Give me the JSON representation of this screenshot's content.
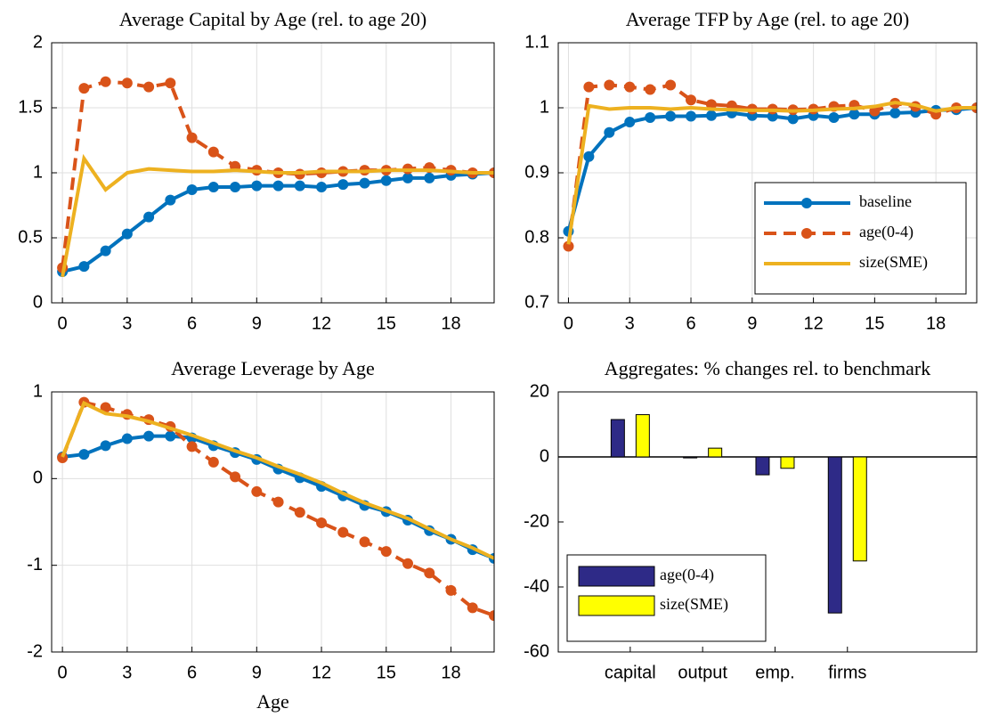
{
  "chart_data": [
    {
      "type": "line",
      "title": "Average Capital by Age (rel. to age 20)",
      "x": [
        0,
        1,
        2,
        3,
        4,
        5,
        6,
        7,
        8,
        9,
        10,
        11,
        12,
        13,
        14,
        15,
        16,
        17,
        18,
        19,
        20
      ],
      "xlim": [
        -0.5,
        20
      ],
      "xticks": [
        0,
        3,
        6,
        9,
        12,
        15,
        18
      ],
      "ylim": [
        0,
        2
      ],
      "yticks": [
        0,
        0.5,
        1,
        1.5,
        2
      ],
      "grid": true,
      "series": [
        {
          "color": "#0072bd",
          "linestyle": "-",
          "marker": "o",
          "values": [
            0.24,
            0.28,
            0.4,
            0.53,
            0.66,
            0.79,
            0.87,
            0.89,
            0.89,
            0.9,
            0.9,
            0.9,
            0.89,
            0.91,
            0.92,
            0.94,
            0.96,
            0.96,
            0.98,
            0.99,
            1.0
          ]
        },
        {
          "color": "#d95319",
          "linestyle": "--",
          "marker": "o",
          "values": [
            0.27,
            1.65,
            1.7,
            1.69,
            1.66,
            1.69,
            1.27,
            1.16,
            1.05,
            1.02,
            1.0,
            0.99,
            1.0,
            1.01,
            1.02,
            1.02,
            1.03,
            1.04,
            1.02,
            1.0,
            1.0
          ]
        },
        {
          "color": "#edb120",
          "linestyle": "-",
          "marker": "none",
          "values": [
            0.2,
            1.11,
            0.87,
            1.0,
            1.03,
            1.02,
            1.01,
            1.01,
            1.02,
            1.01,
            1.0,
            1.0,
            1.01,
            1.01,
            1.01,
            1.02,
            1.02,
            1.02,
            1.01,
            1.0,
            1.0
          ]
        }
      ]
    },
    {
      "type": "line",
      "title": "Average TFP by Age (rel. to age 20)",
      "x": [
        0,
        1,
        2,
        3,
        4,
        5,
        6,
        7,
        8,
        9,
        10,
        11,
        12,
        13,
        14,
        15,
        16,
        17,
        18,
        19,
        20
      ],
      "xlim": [
        -0.5,
        20
      ],
      "xticks": [
        0,
        3,
        6,
        9,
        12,
        15,
        18
      ],
      "ylim": [
        0.7,
        1.1
      ],
      "yticks": [
        0.7,
        0.8,
        0.9,
        1,
        1.1
      ],
      "grid": true,
      "legend": "lower right",
      "series": [
        {
          "name": "baseline",
          "color": "#0072bd",
          "linestyle": "-",
          "marker": "o",
          "values": [
            0.81,
            0.925,
            0.962,
            0.978,
            0.985,
            0.987,
            0.987,
            0.988,
            0.992,
            0.988,
            0.987,
            0.983,
            0.988,
            0.985,
            0.99,
            0.99,
            0.992,
            0.993,
            0.996,
            0.997,
            1.0
          ]
        },
        {
          "name": "age(0-4)",
          "color": "#d95319",
          "linestyle": "--",
          "marker": "o",
          "values": [
            0.787,
            1.032,
            1.035,
            1.032,
            1.028,
            1.035,
            1.012,
            1.005,
            1.003,
            0.998,
            0.998,
            0.997,
            0.998,
            1.002,
            1.004,
            0.995,
            1.007,
            1.002,
            0.99,
            1.0,
            1.0
          ]
        },
        {
          "name": "size(SME)",
          "color": "#edb120",
          "linestyle": "-",
          "marker": "none",
          "values": [
            0.79,
            1.003,
            0.998,
            1.0,
            1.0,
            0.998,
            1.0,
            0.998,
            0.997,
            0.996,
            0.996,
            0.995,
            0.996,
            0.998,
            0.999,
            1.002,
            1.008,
            1.004,
            0.995,
            1.0,
            1.0
          ]
        }
      ]
    },
    {
      "type": "line",
      "title": "Average Leverage by Age",
      "x_label": "Age",
      "x": [
        0,
        1,
        2,
        3,
        4,
        5,
        6,
        7,
        8,
        9,
        10,
        11,
        12,
        13,
        14,
        15,
        16,
        17,
        18,
        19,
        20
      ],
      "xlim": [
        -0.5,
        20
      ],
      "xticks": [
        0,
        3,
        6,
        9,
        12,
        15,
        18
      ],
      "ylim": [
        -2,
        1
      ],
      "yticks": [
        -2,
        -1,
        0,
        1
      ],
      "grid": true,
      "series": [
        {
          "color": "#0072bd",
          "linestyle": "-",
          "marker": "o",
          "values": [
            0.25,
            0.28,
            0.38,
            0.46,
            0.49,
            0.49,
            0.47,
            0.38,
            0.3,
            0.22,
            0.11,
            0.01,
            -0.09,
            -0.2,
            -0.31,
            -0.38,
            -0.48,
            -0.6,
            -0.7,
            -0.82,
            -0.92
          ]
        },
        {
          "color": "#d95319",
          "linestyle": "--",
          "marker": "o",
          "values": [
            0.24,
            0.88,
            0.82,
            0.74,
            0.68,
            0.6,
            0.37,
            0.19,
            0.02,
            -0.15,
            -0.27,
            -0.39,
            -0.51,
            -0.62,
            -0.73,
            -0.84,
            -0.98,
            -1.09,
            -1.29,
            -1.49,
            -1.58
          ]
        },
        {
          "color": "#edb120",
          "linestyle": "-",
          "marker": "none",
          "values": [
            0.25,
            0.87,
            0.75,
            0.72,
            0.66,
            0.58,
            0.5,
            0.41,
            0.32,
            0.24,
            0.14,
            0.05,
            -0.05,
            -0.17,
            -0.28,
            -0.37,
            -0.46,
            -0.58,
            -0.7,
            -0.8,
            -0.92
          ]
        }
      ]
    },
    {
      "type": "bar",
      "title": "Aggregates: % changes rel. to benchmark",
      "categories": [
        "capital",
        "output",
        "emp.",
        "firms"
      ],
      "ylim": [
        -60,
        20
      ],
      "yticks": [
        -60,
        -40,
        -20,
        0,
        20
      ],
      "grid": false,
      "legend": "lower left",
      "series": [
        {
          "name": "age(0-4)",
          "color": "#2e2a87",
          "values": [
            11.5,
            -0.3,
            -5.5,
            -48
          ]
        },
        {
          "name": "size(SME)",
          "color": "#ffff00",
          "values": [
            13,
            2.7,
            -3.5,
            -32
          ]
        }
      ]
    }
  ]
}
